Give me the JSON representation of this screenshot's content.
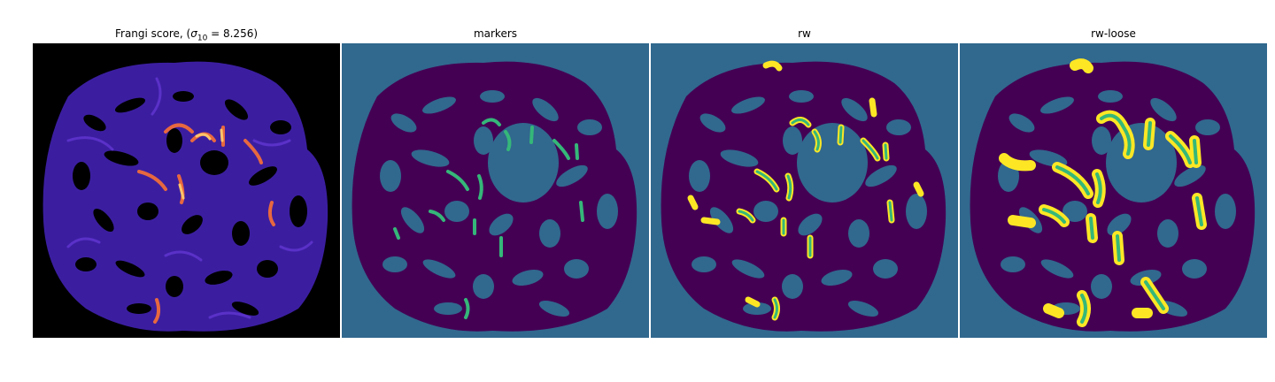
{
  "panels": [
    {
      "title_prefix": "Frangi score, (",
      "title_symbol": "σ",
      "title_subscript": "10",
      "title_suffix": " = 8.256)",
      "colormap": "magma",
      "colors": {
        "background": "#000000",
        "tissue": "#3a1f9c",
        "tissue_light": "#5a31c8",
        "highlight": "#f08a4b",
        "highlight_bright": "#ffd07a"
      }
    },
    {
      "title": "markers",
      "colors": {
        "background": "#31688e",
        "tissue": "#440154",
        "marker": "#35b779"
      }
    },
    {
      "title": "rw",
      "colors": {
        "background": "#31688e",
        "tissue": "#440154",
        "vessel": "#35b779",
        "vessel_edge": "#fde725"
      }
    },
    {
      "title": "rw-loose",
      "colors": {
        "background": "#31688e",
        "tissue": "#440154",
        "vessel": "#35b779",
        "vessel_edge": "#fde725"
      }
    }
  ]
}
